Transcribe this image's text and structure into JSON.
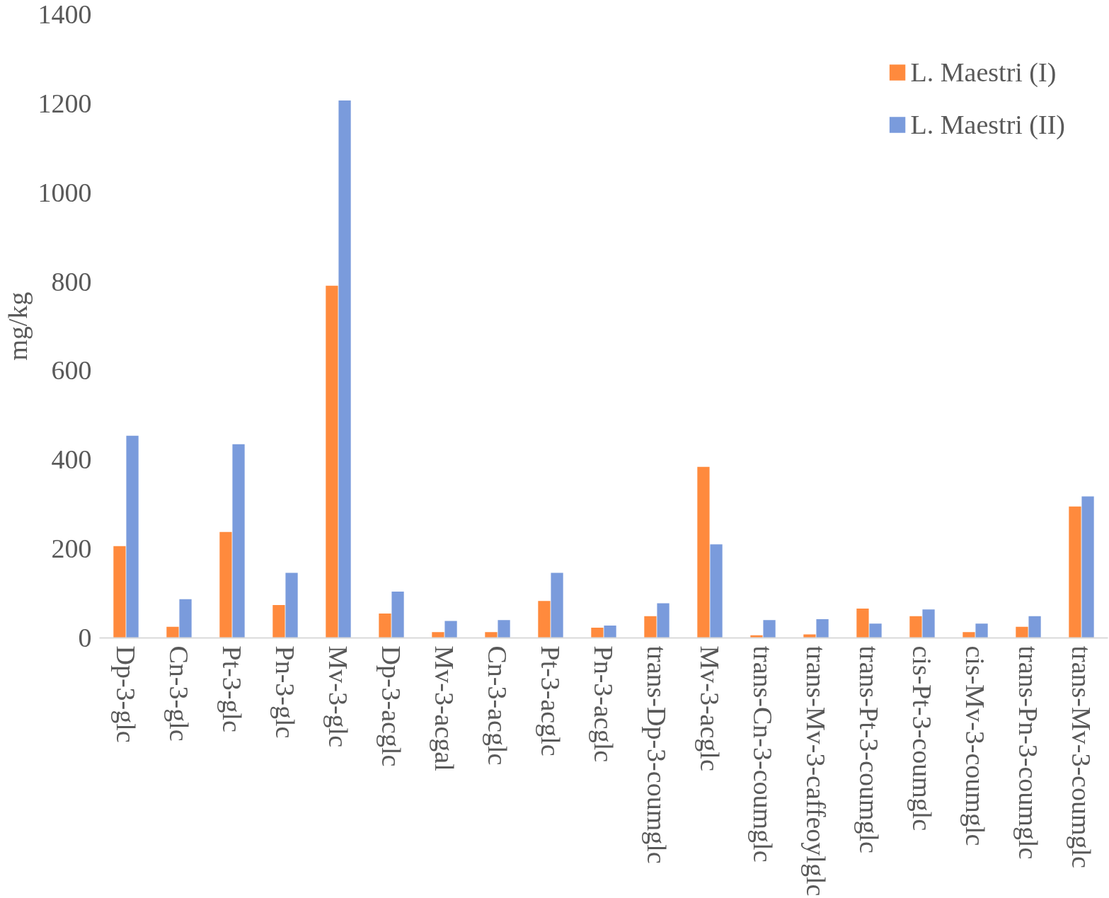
{
  "chart_data": {
    "type": "bar",
    "ylabel": "mg/kg",
    "categories": [
      "Dp-3-glc",
      "Cn-3-glc",
      "Pt-3-glc",
      "Pn-3-glc",
      "Mv-3-glc",
      "Dp-3-acglc",
      "Mv-3-acgal",
      "Cn-3-acglc",
      "Pt-3-acglc",
      "Pn-3-acglc",
      "trans-Dp-3-coumglc",
      "Mv-3-acglc",
      "trans-Cn-3-coumglc",
      "trans-Mv-3-caffeoylglc",
      "trans-Pt-3-coumglc",
      "cis-Pt-3-coumglc",
      "cis-Mv-3-coumglc",
      "trans-Pn-3-coumglc",
      "trans-Mv-3-coumglc"
    ],
    "series": [
      {
        "name": "L. Maestri (I)",
        "color": "#ff8a3d",
        "values": [
          206,
          25,
          238,
          74,
          791,
          55,
          13,
          13,
          83,
          23,
          49,
          384,
          6,
          8,
          66,
          49,
          13,
          25,
          295
        ]
      },
      {
        "name": "L. Maestri (II)",
        "color": "#7a9bdc",
        "values": [
          454,
          87,
          435,
          146,
          1207,
          104,
          38,
          40,
          146,
          28,
          78,
          210,
          40,
          42,
          32,
          64,
          32,
          49,
          318
        ]
      }
    ],
    "ylim": [
      0,
      1400
    ],
    "yticks": [
      0,
      200,
      400,
      600,
      800,
      1000,
      1200,
      1400
    ],
    "grid": false,
    "legend": "top right"
  }
}
